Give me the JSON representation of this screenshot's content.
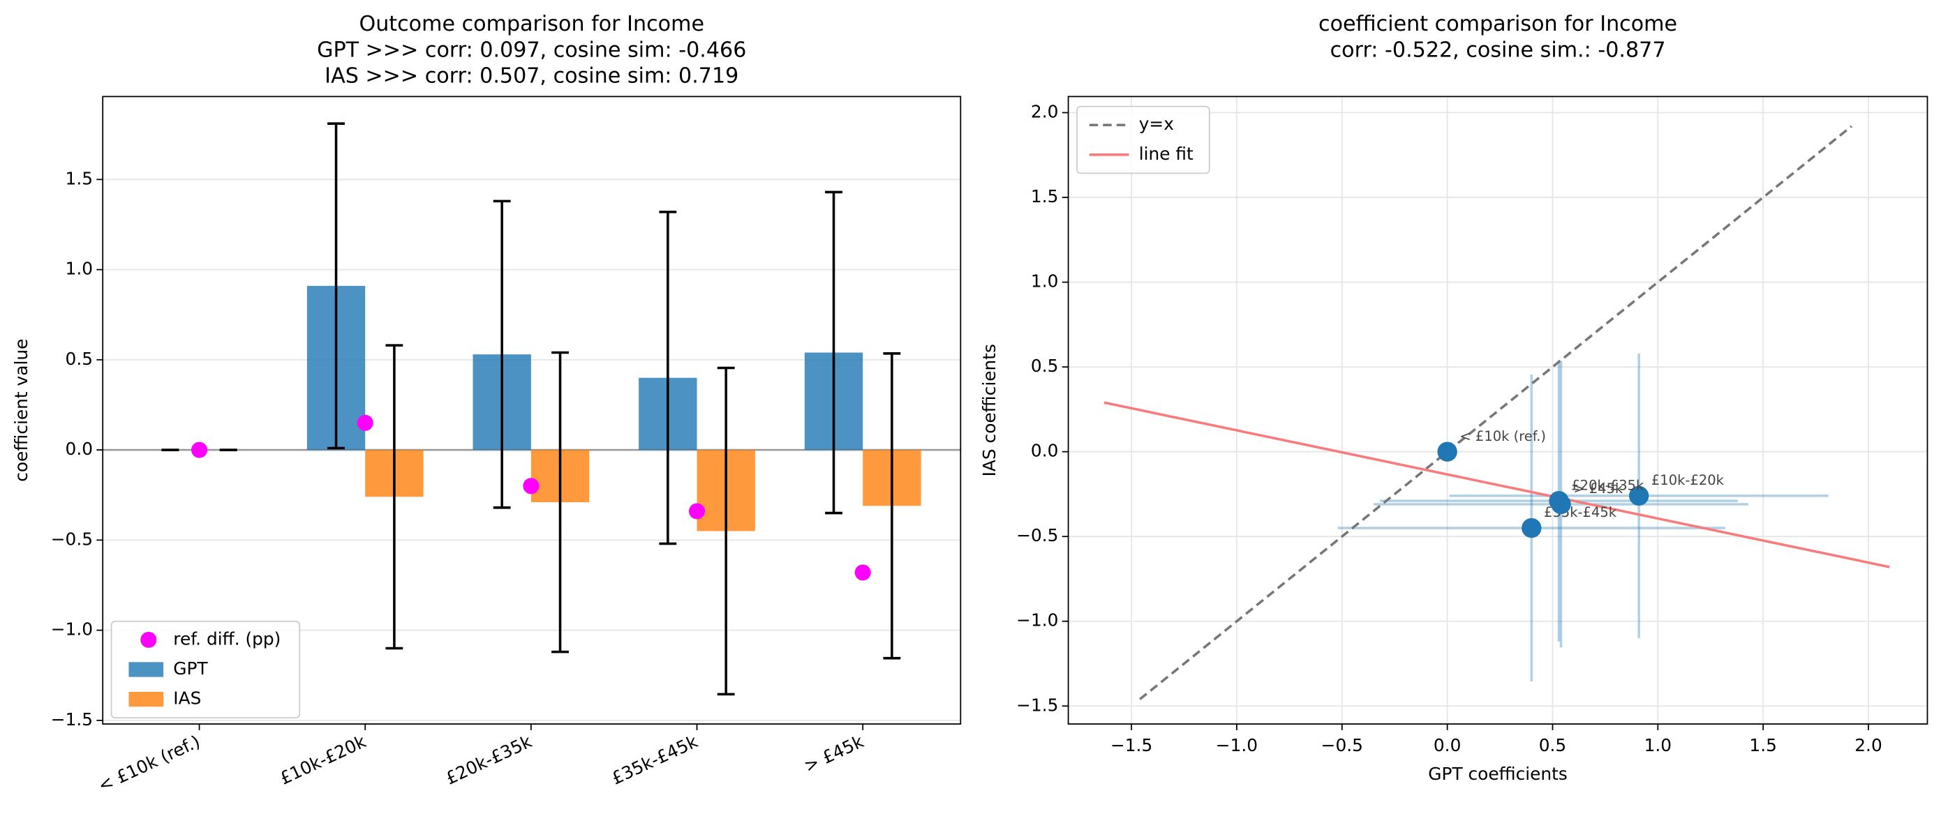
{
  "chart_data": [
    {
      "type": "bar",
      "title": [
        "Outcome comparison for Income",
        "GPT >>> corr: 0.097,  cosine sim: -0.466",
        "IAS >>> corr: 0.507,  cosine sim: 0.719"
      ],
      "y_label": "coefficient value",
      "categories": [
        "< £10k (ref.)",
        "£10k-£20k",
        "£20k-£35k",
        "£35k-£45k",
        "> £45k"
      ],
      "series": [
        {
          "name": "GPT",
          "color": "#1f77b4",
          "values": [
            0,
            0.91,
            0.53,
            0.4,
            0.54
          ],
          "errors": [
            0,
            0.9,
            0.85,
            0.92,
            0.89
          ]
        },
        {
          "name": "IAS",
          "color": "#ff7f0e",
          "values": [
            0,
            -0.26,
            -0.29,
            -0.45,
            -0.31
          ],
          "errors": [
            0,
            0.84,
            0.83,
            0.905,
            0.845
          ]
        }
      ],
      "ref_diff": {
        "name": "ref. diff. (pp)",
        "color": "#ff00ff",
        "values": [
          0,
          0.15,
          -0.2,
          -0.34,
          -0.68
        ]
      },
      "ylim": [
        -1.52,
        1.96
      ],
      "yticks": [
        {
          "value": -1.5,
          "label": "−1.5"
        },
        {
          "value": -1.0,
          "label": "−1.0"
        },
        {
          "value": -0.5,
          "label": "−0.5"
        },
        {
          "value": 0,
          "label": "0.0"
        },
        {
          "value": 0.5,
          "label": "0.5"
        },
        {
          "value": 1.0,
          "label": "1.0"
        },
        {
          "value": 1.5,
          "label": "1.5"
        }
      ],
      "grid": true,
      "legend": "lower left"
    },
    {
      "type": "scatter",
      "title": [
        "coefficient comparison for Income",
        "corr: -0.522, cosine sim.: -0.877"
      ],
      "x_label": "GPT coefficients",
      "y_label": "IAS coefficients",
      "points": {
        "color": "#1f77b4",
        "labels": [
          "< £10k (ref.)",
          "£10k-£20k",
          "£20k-£35k",
          "£35k-£45k",
          "> £45k"
        ],
        "x": [
          0,
          0.91,
          0.53,
          0.4,
          0.54
        ],
        "y": [
          0,
          -0.26,
          -0.29,
          -0.45,
          -0.31
        ],
        "xerr": [
          0,
          0.9,
          0.85,
          0.92,
          0.89
        ],
        "yerr": [
          0,
          0.84,
          0.83,
          0.905,
          0.845
        ]
      },
      "lines": [
        {
          "name": "y=x",
          "color": "#777777",
          "dashed": true,
          "x": [
            -1.46,
            1.92
          ],
          "y": [
            -1.46,
            1.92
          ]
        },
        {
          "name": "line fit",
          "color": "#f87a7a",
          "dashed": false,
          "x": [
            -1.63,
            2.1
          ],
          "y": [
            0.29,
            -0.68
          ]
        }
      ],
      "xlim": [
        -1.8,
        2.28
      ],
      "ylim": [
        -1.606,
        2.095
      ],
      "xticks": [
        {
          "value": -1.5,
          "label": "−1.5"
        },
        {
          "value": -1.0,
          "label": "−1.0"
        },
        {
          "value": -0.5,
          "label": "−0.5"
        },
        {
          "value": 0,
          "label": "0.0"
        },
        {
          "value": 0.5,
          "label": "0.5"
        },
        {
          "value": 1.0,
          "label": "1.0"
        },
        {
          "value": 1.5,
          "label": "1.5"
        },
        {
          "value": 2.0,
          "label": "2.0"
        }
      ],
      "yticks": [
        {
          "value": -1.5,
          "label": "−1.5"
        },
        {
          "value": -1.0,
          "label": "−1.0"
        },
        {
          "value": -0.5,
          "label": "−0.5"
        },
        {
          "value": 0,
          "label": "0.0"
        },
        {
          "value": 0.5,
          "label": "0.5"
        },
        {
          "value": 1.0,
          "label": "1.0"
        },
        {
          "value": 1.5,
          "label": "1.5"
        },
        {
          "value": 2.0,
          "label": "2.0"
        }
      ],
      "grid": true,
      "legend": "upper left"
    }
  ]
}
